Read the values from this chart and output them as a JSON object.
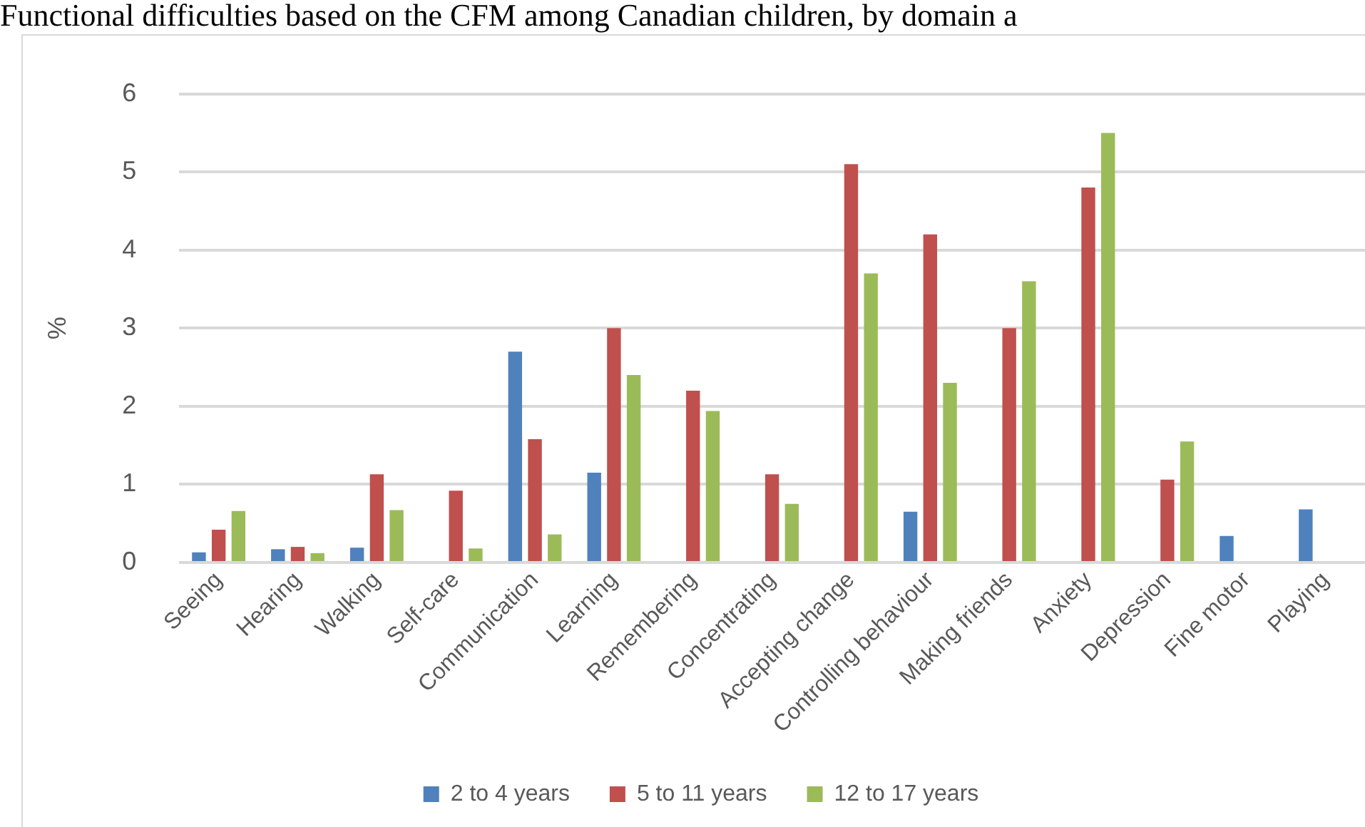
{
  "chart_data": {
    "type": "bar",
    "title": "Functional difficulties based on the CFM among Canadian children, by domain a",
    "ylabel": "%",
    "categories": [
      "Seeing",
      "Hearing",
      "Walking",
      "Self-care",
      "Communication",
      "Learning",
      "Remembering",
      "Concentrating",
      "Accepting change",
      "Controlling behaviour",
      "Making friends",
      "Anxiety",
      "Depression",
      "Fine motor",
      "Playing"
    ],
    "series": [
      {
        "name": "2 to 4 years",
        "color": "#4f81bd",
        "values": [
          0.13,
          0.17,
          0.19,
          null,
          2.7,
          1.15,
          null,
          null,
          null,
          0.65,
          null,
          null,
          null,
          0.34,
          0.68
        ]
      },
      {
        "name": "5 to 11 years",
        "color": "#c0504d",
        "values": [
          0.42,
          0.2,
          1.13,
          0.92,
          1.58,
          3.0,
          2.2,
          1.13,
          5.1,
          4.2,
          3.0,
          4.8,
          1.06,
          null,
          null
        ]
      },
      {
        "name": "12 to 17 years",
        "color": "#9bbb59",
        "values": [
          0.66,
          0.12,
          0.67,
          0.18,
          0.36,
          2.4,
          1.94,
          0.75,
          3.7,
          2.3,
          3.6,
          5.5,
          1.55,
          null,
          null
        ]
      }
    ],
    "ylim": [
      0,
      6
    ],
    "yticks": [
      0,
      1,
      2,
      3,
      4,
      5,
      6
    ],
    "grid": "y",
    "legend": "bottom"
  }
}
